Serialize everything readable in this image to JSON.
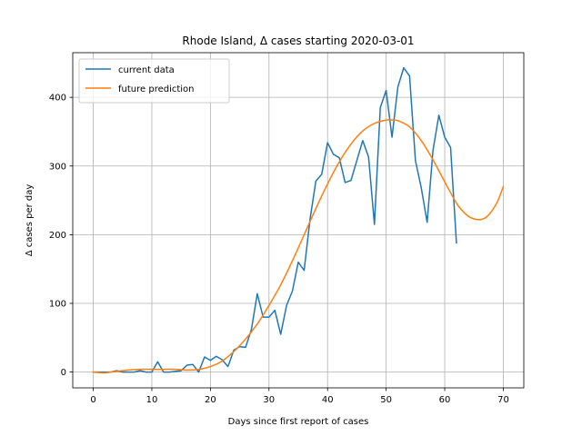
{
  "chart_data": {
    "type": "line",
    "title": "Rhode Island, Δ cases starting 2020-03-01",
    "xlabel": "Days since first report of cases",
    "ylabel": "Δ cases per day",
    "xlim": [
      -3.5,
      73.5
    ],
    "ylim": [
      -23,
      465
    ],
    "xticks": [
      0,
      10,
      20,
      30,
      40,
      50,
      60,
      70
    ],
    "yticks": [
      0,
      100,
      200,
      300,
      400
    ],
    "grid": true,
    "legend_position": "upper-left",
    "series": [
      {
        "name": "current data",
        "color": "#1f77b4",
        "x": [
          0,
          1,
          2,
          3,
          4,
          5,
          6,
          7,
          8,
          9,
          10,
          11,
          12,
          13,
          14,
          15,
          16,
          17,
          18,
          19,
          20,
          21,
          22,
          23,
          24,
          25,
          26,
          27,
          28,
          29,
          30,
          31,
          32,
          33,
          34,
          35,
          36,
          37,
          38,
          39,
          40,
          41,
          42,
          43,
          44,
          45,
          46,
          47,
          48,
          49,
          50,
          51,
          52,
          53,
          54,
          55,
          56,
          57,
          58,
          59,
          60,
          61,
          62
        ],
        "y": [
          0,
          0,
          0,
          0,
          2,
          0,
          0,
          0,
          2,
          0,
          0,
          15,
          0,
          0,
          1,
          2,
          10,
          11,
          0,
          22,
          17,
          23,
          18,
          8,
          32,
          37,
          36,
          62,
          114,
          80,
          80,
          90,
          55,
          97,
          118,
          160,
          148,
          222,
          278,
          288,
          334,
          317,
          312,
          276,
          279,
          308,
          337,
          313,
          215,
          385,
          410,
          342,
          415,
          443,
          431,
          308,
          268,
          218,
          323,
          374,
          342,
          327,
          188
        ]
      },
      {
        "name": "future prediction",
        "color": "#ff7f0e",
        "x": [
          0,
          2,
          4,
          6,
          8,
          10,
          12,
          14,
          16,
          18,
          20,
          22,
          24,
          26,
          28,
          30,
          32,
          34,
          36,
          38,
          40,
          42,
          44,
          46,
          48,
          50,
          51,
          52,
          54,
          56,
          58,
          60,
          62,
          63,
          64,
          65,
          66,
          67,
          68,
          69,
          70
        ],
        "y": [
          0,
          -1,
          1,
          3,
          4,
          4,
          4,
          4,
          3,
          4,
          8,
          16,
          30,
          48,
          70,
          97,
          127,
          162,
          200,
          238,
          274,
          306,
          332,
          351,
          362,
          367,
          367,
          366,
          357,
          337,
          309,
          277,
          246,
          235,
          227,
          223,
          222,
          225,
          234,
          248,
          270
        ]
      }
    ]
  }
}
